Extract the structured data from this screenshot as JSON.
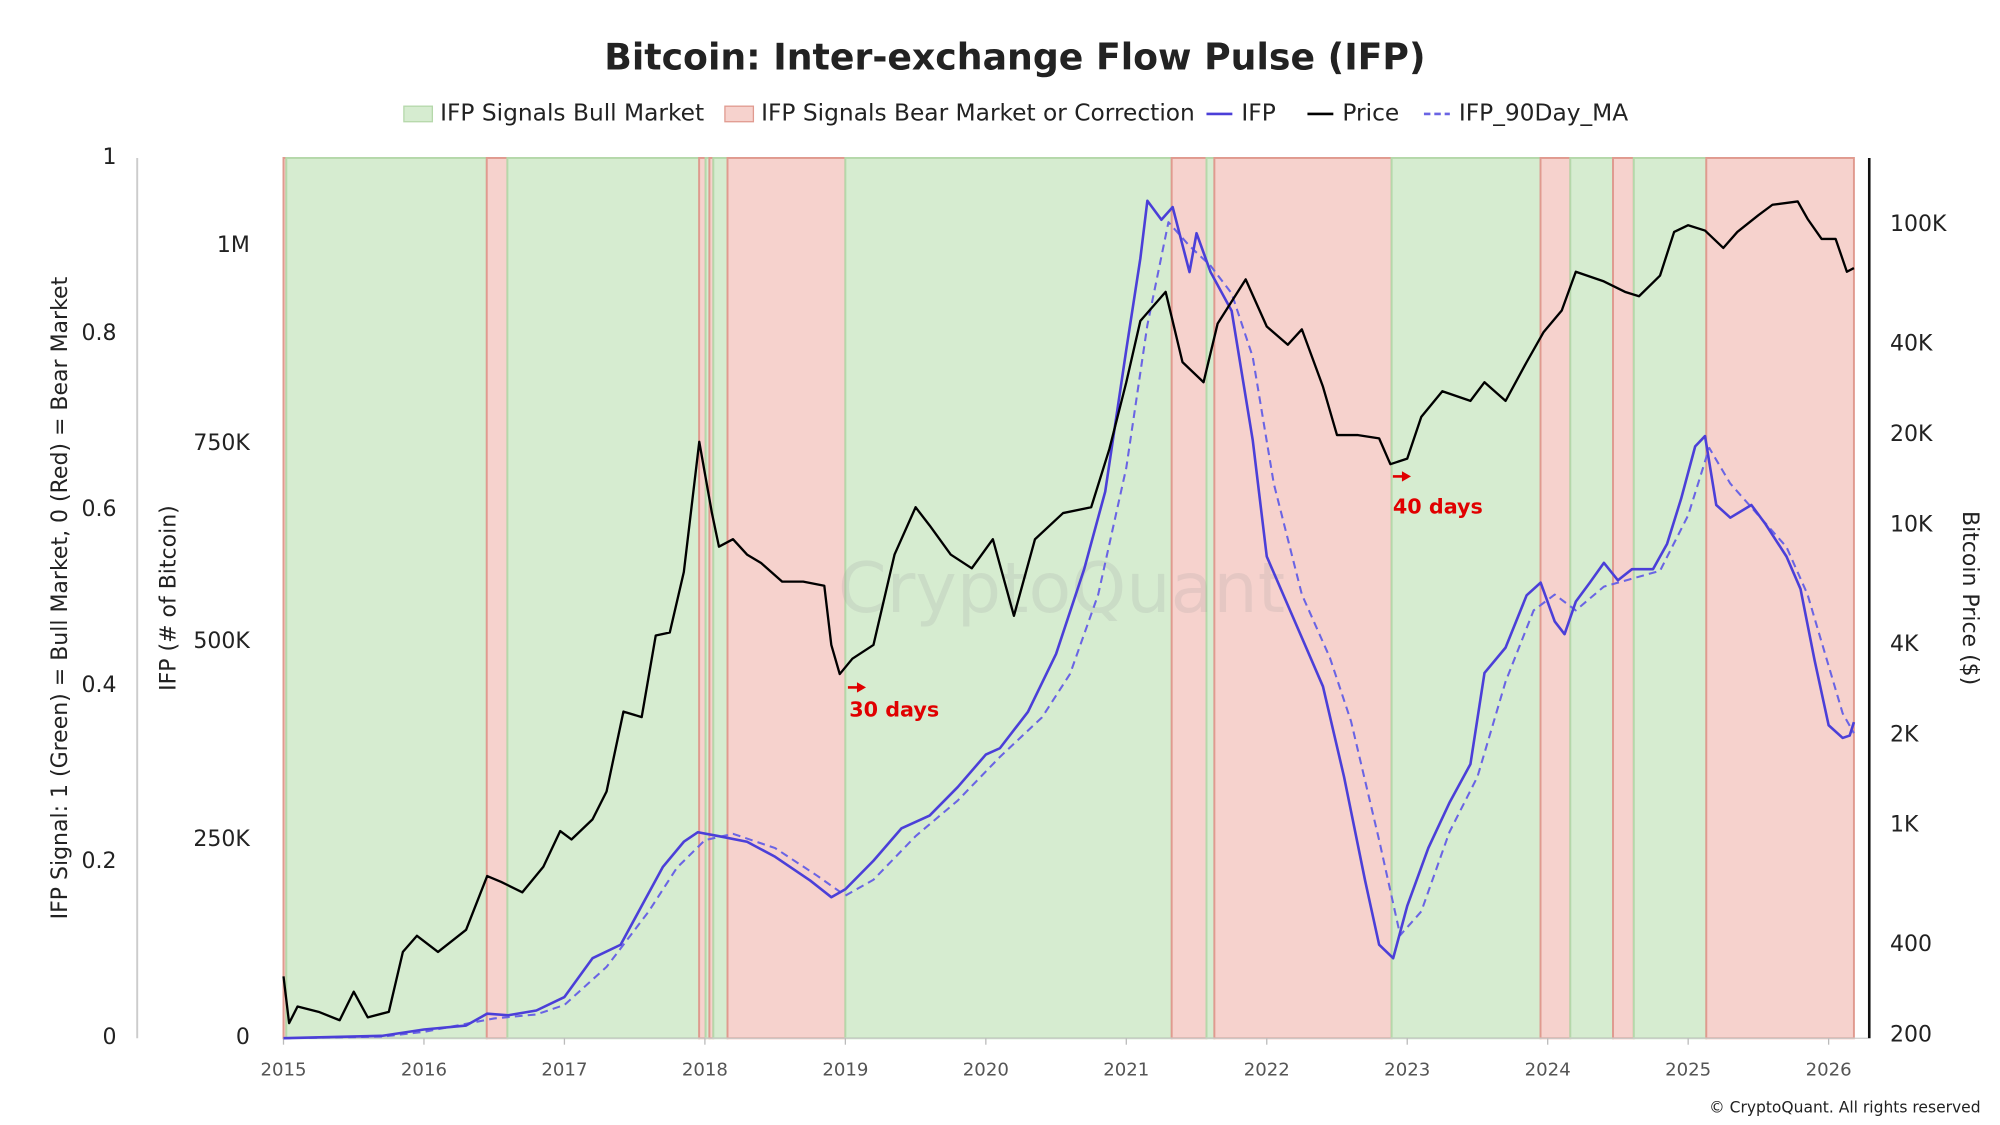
{
  "chart_data": {
    "type": "line",
    "title": "Bitcoin: Inter-exchange Flow Pulse (IFP)",
    "xlim": [
      2015,
      2026.28
    ],
    "xticks": [
      2015,
      2016,
      2017,
      2018,
      2019,
      2020,
      2021,
      2022,
      2023,
      2024,
      2025,
      2026
    ],
    "ylabel": "IFP Signal: 1 (Green) = Bull Market, 0 (Red) = Bear Market",
    "ylim": [
      0,
      1
    ],
    "yticks": [
      0,
      0.2,
      0.4,
      0.6,
      0.8,
      1
    ],
    "y3label": "IFP (# of Bitcoin)",
    "y3lim": [
      0,
      1111000
    ],
    "y3ticks": [
      0,
      {
        "value": 250000,
        "label": "250K"
      },
      {
        "value": 500000,
        "label": "500K"
      },
      {
        "value": 750000,
        "label": "750K"
      },
      {
        "value": 1000000,
        "label": "1M"
      }
    ],
    "y2label": "Bitcoin Price ($)",
    "y2scale": "log",
    "y2lim": [
      196,
      167500
    ],
    "y2ticks": [
      200,
      400,
      {
        "value": 1000,
        "label": "1K"
      },
      {
        "value": 2000,
        "label": "2K"
      },
      {
        "value": 4000,
        "label": "4K"
      },
      {
        "value": 10000,
        "label": "10K"
      },
      {
        "value": 20000,
        "label": "20K"
      },
      {
        "value": 40000,
        "label": "40K"
      },
      {
        "value": 100000,
        "label": "100K"
      }
    ],
    "band_series": [
      {
        "name": "IFP Signals Bull Market",
        "color": "#d6ecd0",
        "edge": "#b5d8aa",
        "signal": 1
      },
      {
        "name": "IFP Signals Bear Market or Correction",
        "color": "#f6d2cd",
        "edge": "#e09a8f",
        "signal": 0
      }
    ],
    "regions": [
      {
        "start": 2015.0,
        "end": 2015.02,
        "signal": 0
      },
      {
        "start": 2015.02,
        "end": 2016.447,
        "signal": 1
      },
      {
        "start": 2016.447,
        "end": 2016.594,
        "signal": 0
      },
      {
        "start": 2016.594,
        "end": 2017.959,
        "signal": 1
      },
      {
        "start": 2017.959,
        "end": 2018.005,
        "signal": 0
      },
      {
        "start": 2018.005,
        "end": 2018.032,
        "signal": 1
      },
      {
        "start": 2018.032,
        "end": 2018.06,
        "signal": 0
      },
      {
        "start": 2018.06,
        "end": 2018.161,
        "signal": 1
      },
      {
        "start": 2018.161,
        "end": 2019.0,
        "signal": 0
      },
      {
        "start": 2019.0,
        "end": 2021.323,
        "signal": 1
      },
      {
        "start": 2021.323,
        "end": 2021.571,
        "signal": 0
      },
      {
        "start": 2021.571,
        "end": 2021.627,
        "signal": 1
      },
      {
        "start": 2021.627,
        "end": 2022.889,
        "signal": 0
      },
      {
        "start": 2022.889,
        "end": 2023.949,
        "signal": 1
      },
      {
        "start": 2023.949,
        "end": 2024.161,
        "signal": 0
      },
      {
        "start": 2024.161,
        "end": 2024.465,
        "signal": 1
      },
      {
        "start": 2024.465,
        "end": 2024.613,
        "signal": 0
      },
      {
        "start": 2024.613,
        "end": 2025.129,
        "signal": 1
      },
      {
        "start": 2025.129,
        "end": 2026.18,
        "signal": 0
      }
    ],
    "series": [
      {
        "name": "IFP",
        "color": "#4b3fd8",
        "axis": "y3",
        "x": [
          2015.0,
          2015.7,
          2016.0,
          2016.3,
          2016.45,
          2016.6,
          2016.8,
          2017.0,
          2017.2,
          2017.4,
          2017.55,
          2017.7,
          2017.85,
          2017.95,
          2018.1,
          2018.3,
          2018.5,
          2018.75,
          2018.9,
          2019.0,
          2019.2,
          2019.4,
          2019.6,
          2019.8,
          2020.0,
          2020.1,
          2020.3,
          2020.5,
          2020.7,
          2020.85,
          2021.0,
          2021.1,
          2021.15,
          2021.25,
          2021.33,
          2021.45,
          2021.5,
          2021.6,
          2021.75,
          2021.9,
          2022.0,
          2022.2,
          2022.4,
          2022.55,
          2022.7,
          2022.8,
          2022.9,
          2023.0,
          2023.15,
          2023.3,
          2023.45,
          2023.55,
          2023.7,
          2023.85,
          2023.95,
          2024.05,
          2024.12,
          2024.2,
          2024.3,
          2024.4,
          2024.5,
          2024.6,
          2024.75,
          2024.85,
          2024.95,
          2025.05,
          2025.12,
          2025.2,
          2025.3,
          2025.45,
          2025.55,
          2025.7,
          2025.8,
          2025.9,
          2026.0,
          2026.1,
          2026.15,
          2026.18
        ],
        "values": [
          0,
          3000,
          11000,
          16000,
          31000,
          29000,
          35000,
          52000,
          101000,
          118000,
          167000,
          216000,
          248000,
          260000,
          255000,
          248000,
          229000,
          199000,
          178000,
          188000,
          224000,
          265000,
          281000,
          317000,
          358000,
          366000,
          412000,
          485000,
          592000,
          690000,
          869000,
          984000,
          1057000,
          1033000,
          1049000,
          967000,
          1016000,
          967000,
          918000,
          755000,
          608000,
          526000,
          444000,
          330000,
          199000,
          118000,
          101000,
          167000,
          240000,
          297000,
          346000,
          461000,
          493000,
          559000,
          575000,
          526000,
          510000,
          551000,
          575000,
          600000,
          578000,
          592000,
          592000,
          624000,
          681000,
          747000,
          760000,
          673000,
          657000,
          673000,
          649000,
          608000,
          567000,
          477000,
          395000,
          379000,
          382000,
          399000
        ]
      },
      {
        "name": "Price",
        "color": "#000000",
        "axis": "y2",
        "x": [
          2015.0,
          2015.04,
          2015.1,
          2015.25,
          2015.4,
          2015.5,
          2015.6,
          2015.75,
          2015.85,
          2015.95,
          2016.1,
          2016.3,
          2016.45,
          2016.55,
          2016.7,
          2016.85,
          2016.97,
          2017.05,
          2017.2,
          2017.3,
          2017.42,
          2017.55,
          2017.65,
          2017.75,
          2017.85,
          2017.96,
          2018.05,
          2018.1,
          2018.2,
          2018.3,
          2018.4,
          2018.55,
          2018.7,
          2018.85,
          2018.9,
          2018.96,
          2019.05,
          2019.2,
          2019.35,
          2019.5,
          2019.6,
          2019.75,
          2019.9,
          2020.05,
          2020.2,
          2020.35,
          2020.55,
          2020.75,
          2020.88,
          2021.0,
          2021.1,
          2021.28,
          2021.4,
          2021.55,
          2021.65,
          2021.85,
          2022.0,
          2022.15,
          2022.25,
          2022.4,
          2022.5,
          2022.65,
          2022.8,
          2022.88,
          2023.0,
          2023.1,
          2023.25,
          2023.45,
          2023.55,
          2023.7,
          2023.85,
          2023.97,
          2024.1,
          2024.2,
          2024.4,
          2024.55,
          2024.65,
          2024.8,
          2024.9,
          2025.0,
          2025.12,
          2025.25,
          2025.35,
          2025.5,
          2025.6,
          2025.78,
          2025.85,
          2025.95,
          2026.05,
          2026.13,
          2026.18
        ],
        "values": [
          315,
          220,
          250,
          240,
          225,
          280,
          230,
          240,
          380,
          430,
          380,
          450,
          680,
          650,
          600,
          730,
          960,
          900,
          1050,
          1300,
          2400,
          2300,
          4300,
          4400,
          7000,
          19000,
          11000,
          8500,
          9000,
          8000,
          7500,
          6500,
          6500,
          6300,
          4000,
          3200,
          3600,
          4000,
          8000,
          11500,
          10000,
          8000,
          7200,
          9000,
          5000,
          9000,
          11000,
          11500,
          18000,
          30000,
          48000,
          60000,
          35000,
          30000,
          47000,
          66000,
          46000,
          40000,
          45000,
          29000,
          20000,
          20000,
          19500,
          16000,
          16700,
          23000,
          28000,
          26000,
          30000,
          26000,
          35000,
          44000,
          52000,
          70000,
          65000,
          60000,
          58000,
          68000,
          95000,
          100000,
          96000,
          84000,
          95000,
          108000,
          117000,
          120000,
          105000,
          90000,
          90000,
          70000,
          72000
        ]
      },
      {
        "name": "IFP_90Day_MA",
        "color": "#6a64e4",
        "axis": "y3",
        "dashed": true,
        "x": [
          2015.0,
          2015.7,
          2016.0,
          2016.5,
          2016.8,
          2017.0,
          2017.3,
          2017.6,
          2017.8,
          2018.0,
          2018.2,
          2018.5,
          2018.8,
          2019.0,
          2019.2,
          2019.5,
          2019.8,
          2020.1,
          2020.4,
          2020.6,
          2020.8,
          2021.0,
          2021.15,
          2021.3,
          2021.45,
          2021.6,
          2021.75,
          2021.9,
          2022.05,
          2022.25,
          2022.45,
          2022.6,
          2022.8,
          2022.95,
          2023.1,
          2023.3,
          2023.5,
          2023.7,
          2023.9,
          2024.05,
          2024.2,
          2024.4,
          2024.6,
          2024.8,
          2025.0,
          2025.15,
          2025.3,
          2025.5,
          2025.7,
          2025.85,
          2026.0,
          2026.1,
          2026.18
        ],
        "values": [
          0,
          2000,
          8000,
          25000,
          30000,
          42000,
          90000,
          160000,
          215000,
          250000,
          258000,
          240000,
          205000,
          180000,
          200000,
          255000,
          300000,
          355000,
          405000,
          460000,
          560000,
          720000,
          900000,
          1030000,
          1000000,
          975000,
          940000,
          860000,
          700000,
          560000,
          480000,
          400000,
          250000,
          130000,
          160000,
          260000,
          330000,
          450000,
          540000,
          560000,
          540000,
          570000,
          580000,
          590000,
          660000,
          745000,
          700000,
          660000,
          620000,
          560000,
          470000,
          410000,
          385000
        ]
      }
    ],
    "annotations": [
      "30 days",
      "40 days"
    ],
    "watermark": "CryptoQuant",
    "copyright": "© CryptoQuant. All rights reserved"
  }
}
